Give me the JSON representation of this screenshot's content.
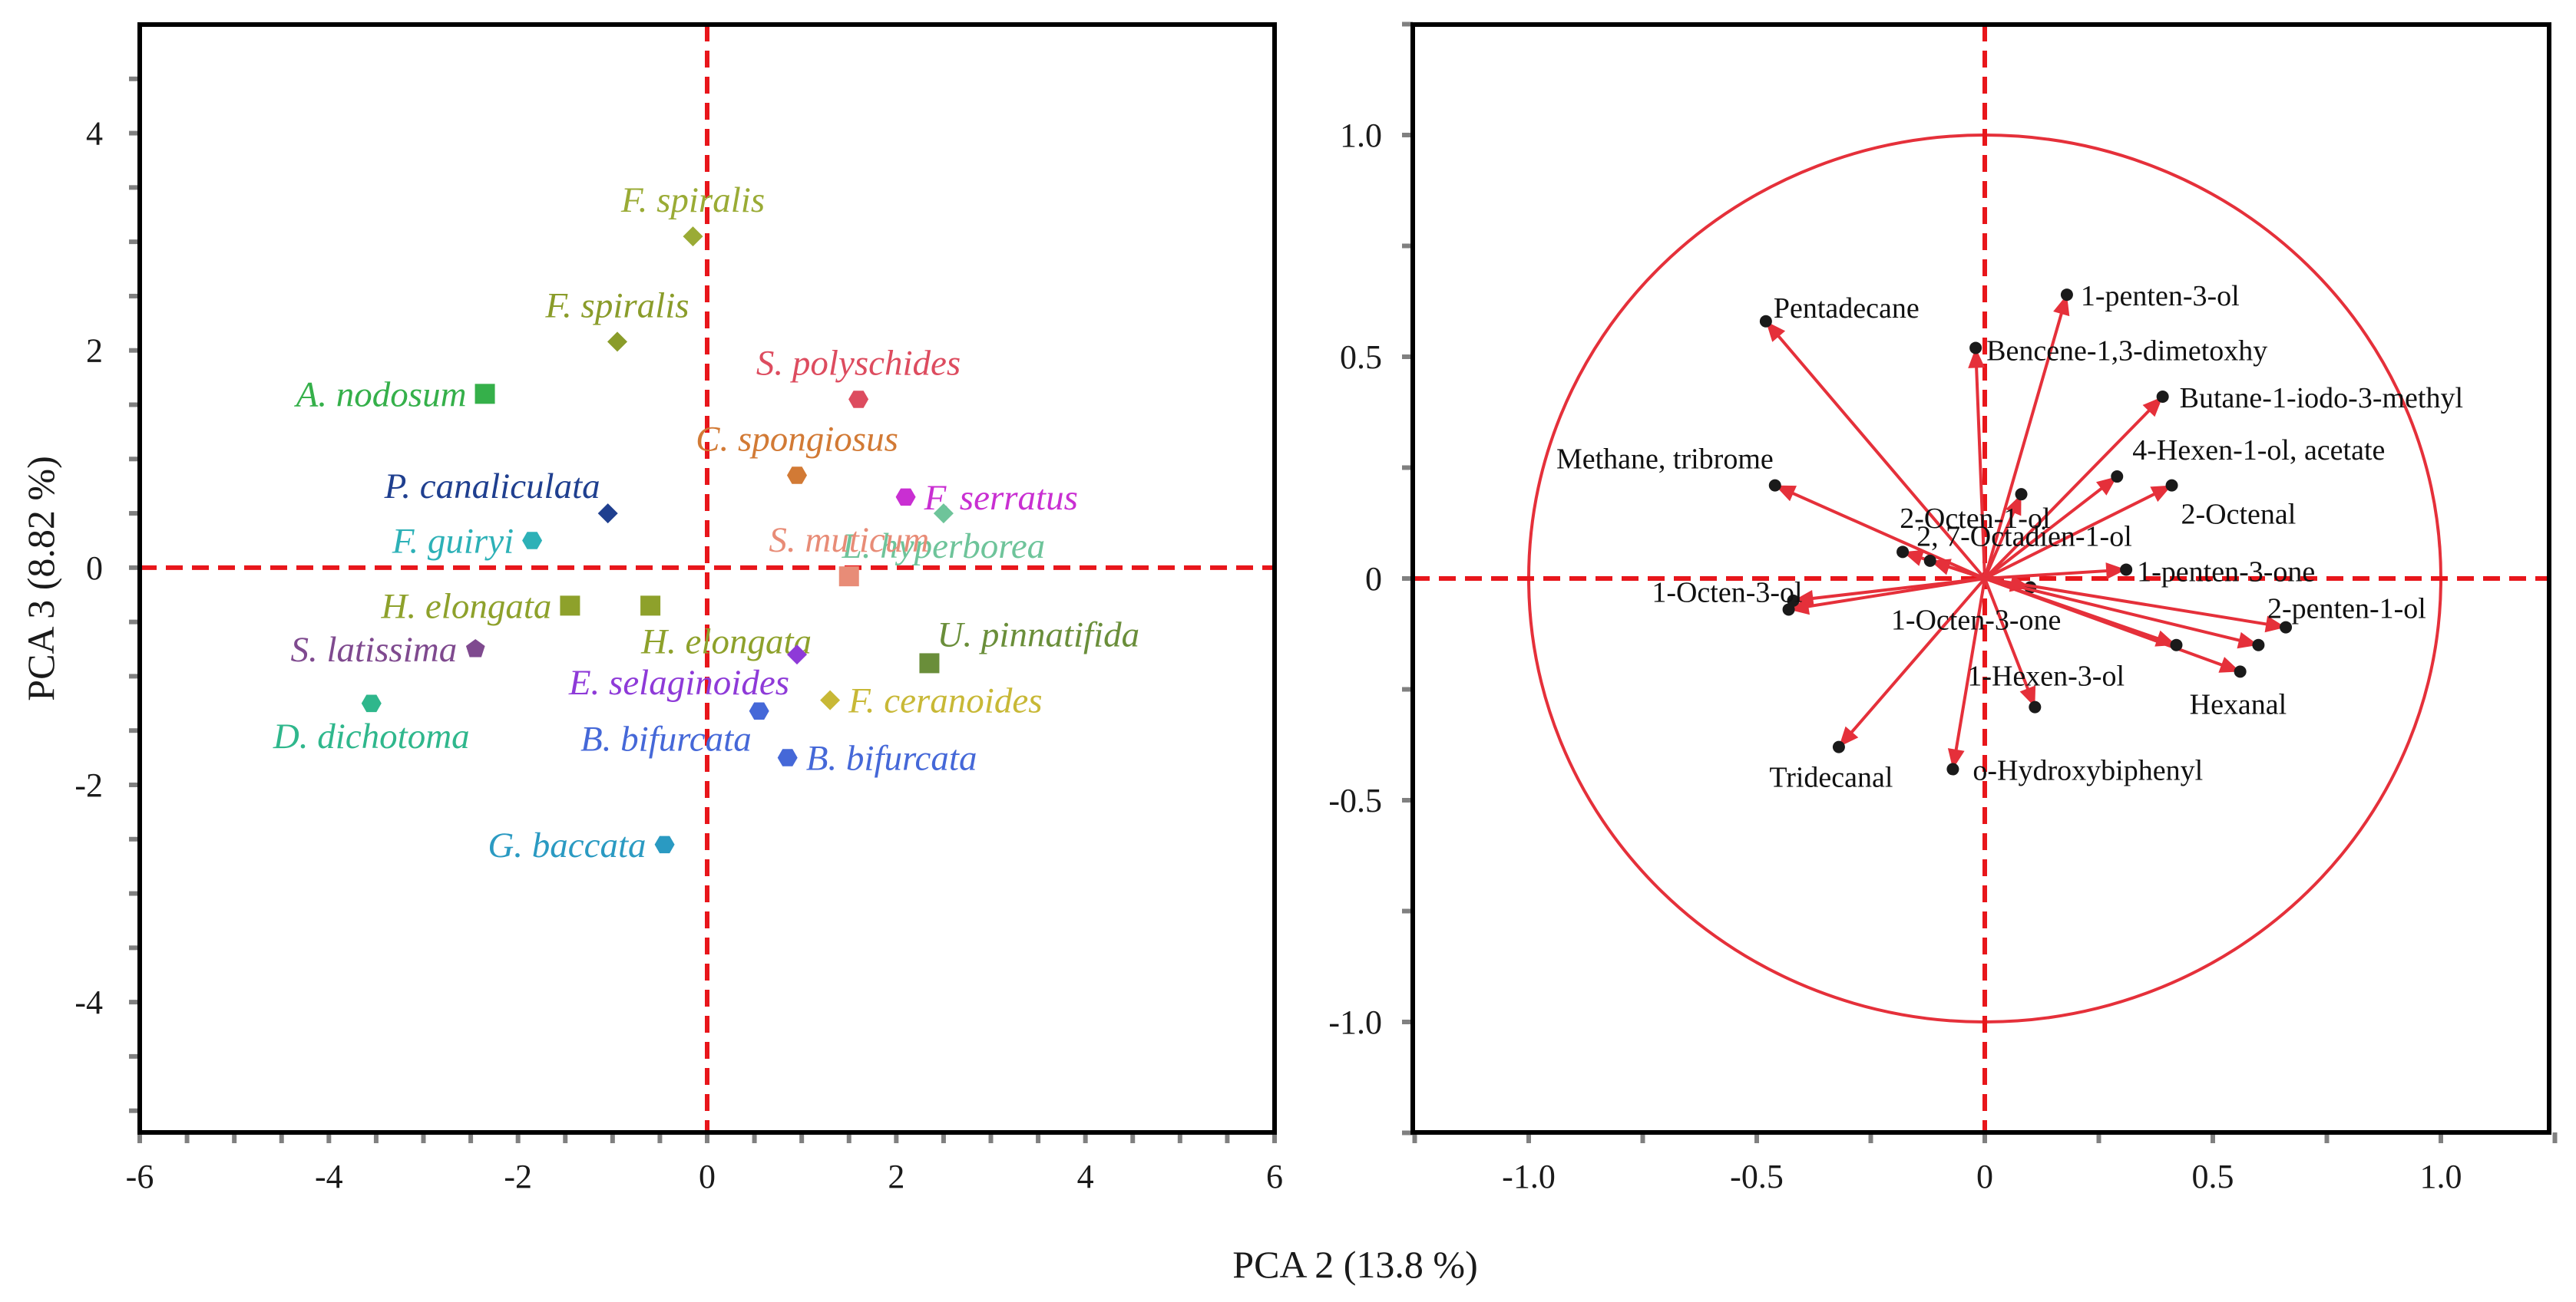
{
  "x_axis_title": "PCA 2  (13.8 %)",
  "chart_data": [
    {
      "type": "scatter",
      "title": "",
      "xlabel": "PCA 2  (13.8 %)",
      "ylabel": "PCA 3  (8.82 %)",
      "xlim": [
        -6,
        6
      ],
      "ylim": [
        -5.2,
        5.0
      ],
      "xticks": [
        -6,
        -4,
        -2,
        0,
        2,
        4,
        6
      ],
      "yticks": [
        4,
        2,
        0,
        -2,
        -4
      ],
      "xtick_labels": [
        "-6",
        "-4",
        "-2",
        "0",
        "2",
        "4",
        "6"
      ],
      "ytick_labels": [
        "4",
        "2",
        "0",
        "-2",
        "-4"
      ],
      "reference_lines": [
        0,
        0
      ],
      "points": [
        {
          "label": "F. spiralis",
          "x": -0.15,
          "y": 3.05,
          "color": "#9aab35",
          "marker": "diamond",
          "label_pos": "above"
        },
        {
          "label": "F. spiralis",
          "x": -0.95,
          "y": 2.08,
          "color": "#8a9c2a",
          "marker": "diamond",
          "label_pos": "above"
        },
        {
          "label": "A. nodosum",
          "x": -2.35,
          "y": 1.6,
          "color": "#35b04a",
          "marker": "square",
          "label_pos": "left"
        },
        {
          "label": "S. polyschides",
          "x": 1.6,
          "y": 1.55,
          "color": "#dd4c5f",
          "marker": "hexagon",
          "label_pos": "above"
        },
        {
          "label": "C. spongiosus",
          "x": 0.95,
          "y": 0.85,
          "color": "#d27a35",
          "marker": "hexagon",
          "label_pos": "above"
        },
        {
          "label": "P. canaliculata",
          "x": -1.05,
          "y": 0.5,
          "color": "#1f3f8f",
          "marker": "diamond",
          "label_pos": "above-left"
        },
        {
          "label": "F.  serratus",
          "x": 2.1,
          "y": 0.65,
          "color": "#c92fd2",
          "marker": "hexagon",
          "label_pos": "right"
        },
        {
          "label": "L. hyperborea",
          "x": 2.5,
          "y": 0.5,
          "color": "#6ec49a",
          "marker": "diamond",
          "label_pos": "below"
        },
        {
          "label": "F.  guiryi",
          "x": -1.85,
          "y": 0.25,
          "color": "#2db1b7",
          "marker": "hexagon",
          "label_pos": "left"
        },
        {
          "label": "S. muticum",
          "x": 1.5,
          "y": -0.08,
          "color": "#e88c77",
          "marker": "square",
          "label_pos": "above"
        },
        {
          "label": "H. elongata",
          "x": -1.45,
          "y": -0.35,
          "color": "#8ea12b",
          "marker": "square",
          "label_pos": "left"
        },
        {
          "label": "H. elongata",
          "x": -0.6,
          "y": -0.35,
          "color": "#8ea12b",
          "marker": "square",
          "label_pos": "below-right"
        },
        {
          "label": "U. pinnatifida",
          "x": 2.35,
          "y": -0.88,
          "color": "#6a8e3a",
          "marker": "square",
          "label_pos": "above-right"
        },
        {
          "label": "S. latissima",
          "x": -2.45,
          "y": -0.75,
          "color": "#7f4a8f",
          "marker": "pentagon",
          "label_pos": "left"
        },
        {
          "label": "E. selaginoides",
          "x": 0.95,
          "y": -0.8,
          "color": "#8e3ad8",
          "marker": "diamond",
          "label_pos": "below-left"
        },
        {
          "label": "F.  ceranoides",
          "x": 1.3,
          "y": -1.22,
          "color": "#c8b836",
          "marker": "diamond",
          "label_pos": "right"
        },
        {
          "label": "D. dichotoma",
          "x": -3.55,
          "y": -1.25,
          "color": "#2fb78c",
          "marker": "hexagon",
          "label_pos": "below"
        },
        {
          "label": "B. bifurcata",
          "x": 0.55,
          "y": -1.32,
          "color": "#4568d8",
          "marker": "hexagon",
          "label_pos": "below-left"
        },
        {
          "label": "B. bifurcata",
          "x": 0.85,
          "y": -1.75,
          "color": "#4568d8",
          "marker": "hexagon",
          "label_pos": "right"
        },
        {
          "label": "G. baccata",
          "x": -0.45,
          "y": -2.55,
          "color": "#2a9ac2",
          "marker": "hexagon",
          "label_pos": "left"
        }
      ]
    },
    {
      "type": "scatter",
      "subtype": "loading-plot",
      "title": "",
      "xlim": [
        -1.25,
        1.25
      ],
      "ylim": [
        -1.25,
        1.25
      ],
      "xticks": [
        -1.0,
        -0.5,
        0,
        0.5,
        1.0
      ],
      "yticks": [
        1.0,
        0.5,
        0,
        -0.5,
        -1.0
      ],
      "xtick_labels": [
        "-1.0",
        "-0.5",
        "0",
        "0.5",
        "1.0"
      ],
      "ytick_labels": [
        "1.0",
        "0.5",
        "0",
        "-0.5",
        "-1.0"
      ],
      "reference_lines": [
        0,
        0
      ],
      "circle_radius": 1.0,
      "color": "#e5303a",
      "vectors": [
        {
          "label": "Pentadecane",
          "x": -0.48,
          "y": 0.58
        },
        {
          "label": "1-penten-3-ol",
          "x": 0.18,
          "y": 0.64
        },
        {
          "label": "Bencene-1,3-dimetoxhy",
          "x": -0.02,
          "y": 0.52
        },
        {
          "label": "Butane-1-iodo-3-methyl",
          "x": 0.39,
          "y": 0.41
        },
        {
          "label": "4-Hexen-1-ol, acetate",
          "x": 0.29,
          "y": 0.23
        },
        {
          "label": "2-Octenal",
          "x": 0.41,
          "y": 0.21
        },
        {
          "label": "Methane, tribrome",
          "x": -0.46,
          "y": 0.21
        },
        {
          "label": "2-Octen-1-ol",
          "x": 0.08,
          "y": 0.19
        },
        {
          "label": "2, 7-Octadien-1-ol",
          "x": -0.18,
          "y": 0.06
        },
        {
          "label": "1-penten-3-one",
          "x": 0.31,
          "y": 0.02
        },
        {
          "label": "1-Octen-3-ol",
          "x": -0.43,
          "y": -0.07
        },
        {
          "label": "1-Octen-3-one",
          "x": 0.1,
          "y": -0.02
        },
        {
          "label": "2-penten-1-ol",
          "x": 0.66,
          "y": -0.11
        },
        {
          "label": "Hexanal",
          "x": 0.56,
          "y": -0.21
        },
        {
          "label": "1-Hexen-3-ol",
          "x": 0.11,
          "y": -0.29
        },
        {
          "label": "Tridecanal",
          "x": -0.32,
          "y": -0.38
        },
        {
          "label": "o-Hydroxybiphenyl",
          "x": -0.07,
          "y": -0.43
        },
        {
          "label": "",
          "x": 0.42,
          "y": -0.15
        },
        {
          "label": "",
          "x": 0.6,
          "y": -0.15
        },
        {
          "label": "",
          "x": -0.42,
          "y": -0.05
        },
        {
          "label": "",
          "x": -0.12,
          "y": 0.04
        }
      ]
    }
  ]
}
